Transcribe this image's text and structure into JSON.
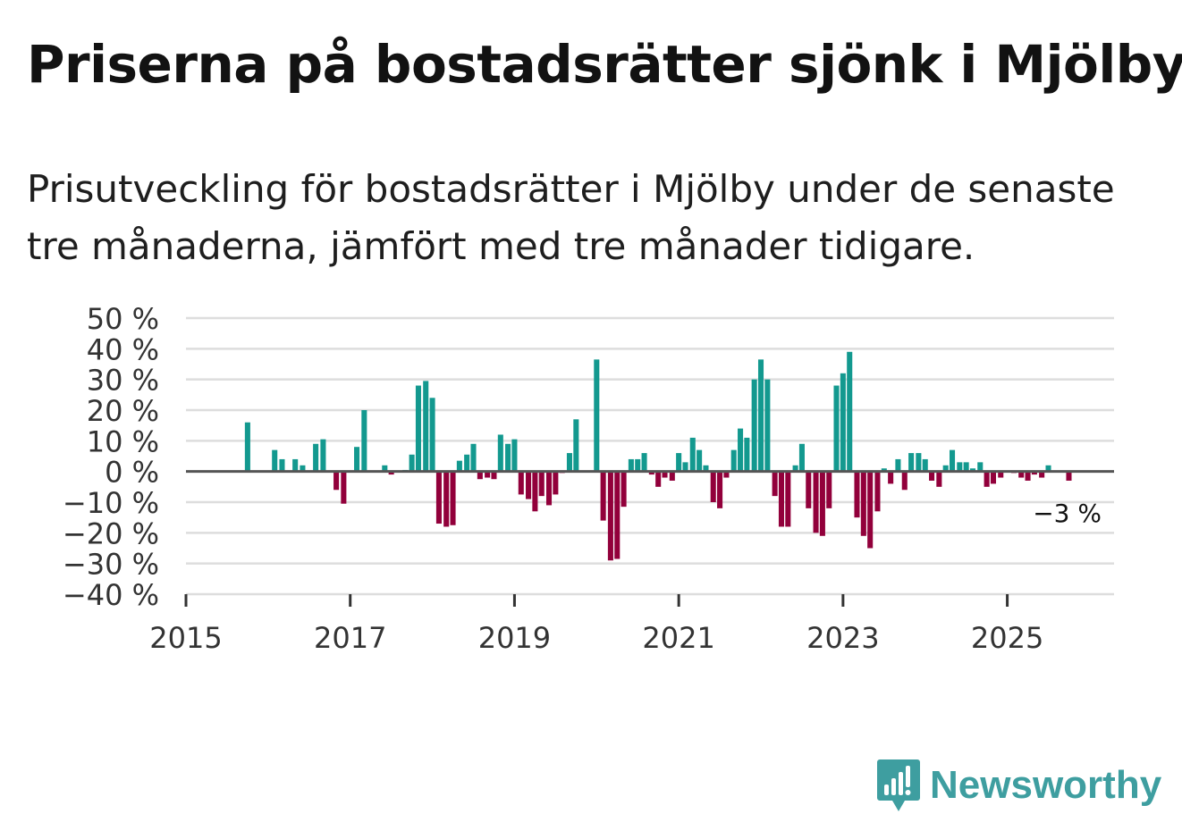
{
  "title": "Priserna på bostadsrätter sjönk i Mjölby",
  "subtitle": "Prisutveckling för bostadsrätter i Mjölby under de senaste tre månaderna, jämfört med tre månader tidigare.",
  "brand": {
    "name": "Newsworthy",
    "icon": "newsworthy-logo-icon"
  },
  "colors": {
    "positive": "#13998f",
    "negative": "#92003b",
    "grid": "#dddddd",
    "zero": "#555555",
    "text": "#121212",
    "brand": "#3e9ea0"
  },
  "chart_data": {
    "type": "bar",
    "title": "",
    "xlabel": "",
    "ylabel": "",
    "x_unit": "year (decimal)",
    "xlim": [
      2015,
      2026.3
    ],
    "ylim": [
      -40,
      50
    ],
    "yticks": [
      50,
      40,
      30,
      20,
      10,
      0,
      -10,
      -20,
      -30,
      -40
    ],
    "ytick_labels": [
      "50 %",
      "40 %",
      "30 %",
      "20 %",
      "10 %",
      "0 %",
      "−10 %",
      "−20 %",
      "−30 %",
      "−40 %"
    ],
    "xticks": [
      2015,
      2017,
      2019,
      2021,
      2023,
      2025
    ],
    "xtick_labels": [
      "2015",
      "2017",
      "2019",
      "2021",
      "2023",
      "2025"
    ],
    "grid": true,
    "last_value_label": "−3 %",
    "points": [
      {
        "x": 2015.75,
        "y": 16
      },
      {
        "x": 2016.08,
        "y": 7
      },
      {
        "x": 2016.17,
        "y": 4
      },
      {
        "x": 2016.33,
        "y": 4
      },
      {
        "x": 2016.42,
        "y": 2
      },
      {
        "x": 2016.58,
        "y": 9
      },
      {
        "x": 2016.67,
        "y": 10.5
      },
      {
        "x": 2016.83,
        "y": -6
      },
      {
        "x": 2016.92,
        "y": -10.5
      },
      {
        "x": 2017.08,
        "y": 8
      },
      {
        "x": 2017.17,
        "y": 20
      },
      {
        "x": 2017.42,
        "y": 2
      },
      {
        "x": 2017.5,
        "y": -1
      },
      {
        "x": 2017.67,
        "y": 0.5
      },
      {
        "x": 2017.75,
        "y": 5.5
      },
      {
        "x": 2017.83,
        "y": 28
      },
      {
        "x": 2017.92,
        "y": 29.5
      },
      {
        "x": 2018.0,
        "y": 24
      },
      {
        "x": 2018.08,
        "y": -17
      },
      {
        "x": 2018.17,
        "y": -18
      },
      {
        "x": 2018.25,
        "y": -17.5
      },
      {
        "x": 2018.33,
        "y": 3.5
      },
      {
        "x": 2018.42,
        "y": 5.5
      },
      {
        "x": 2018.5,
        "y": 9
      },
      {
        "x": 2018.58,
        "y": -2.5
      },
      {
        "x": 2018.67,
        "y": -2
      },
      {
        "x": 2018.75,
        "y": -2.5
      },
      {
        "x": 2018.83,
        "y": 12
      },
      {
        "x": 2018.92,
        "y": 9
      },
      {
        "x": 2019.0,
        "y": 10.5
      },
      {
        "x": 2019.08,
        "y": -7.5
      },
      {
        "x": 2019.17,
        "y": -9
      },
      {
        "x": 2019.25,
        "y": -13
      },
      {
        "x": 2019.33,
        "y": -8
      },
      {
        "x": 2019.42,
        "y": -11
      },
      {
        "x": 2019.5,
        "y": -7.5
      },
      {
        "x": 2019.58,
        "y": -0.5
      },
      {
        "x": 2019.67,
        "y": 6
      },
      {
        "x": 2019.75,
        "y": 17
      },
      {
        "x": 2020.0,
        "y": 36.5
      },
      {
        "x": 2020.08,
        "y": -16
      },
      {
        "x": 2020.17,
        "y": -29
      },
      {
        "x": 2020.25,
        "y": -28.5
      },
      {
        "x": 2020.33,
        "y": -11.5
      },
      {
        "x": 2020.42,
        "y": 4
      },
      {
        "x": 2020.5,
        "y": 4
      },
      {
        "x": 2020.58,
        "y": 6
      },
      {
        "x": 2020.67,
        "y": -1
      },
      {
        "x": 2020.75,
        "y": -5
      },
      {
        "x": 2020.83,
        "y": -2
      },
      {
        "x": 2020.92,
        "y": -3
      },
      {
        "x": 2021.0,
        "y": 6
      },
      {
        "x": 2021.08,
        "y": 3
      },
      {
        "x": 2021.17,
        "y": 11
      },
      {
        "x": 2021.25,
        "y": 7
      },
      {
        "x": 2021.33,
        "y": 2
      },
      {
        "x": 2021.42,
        "y": -10
      },
      {
        "x": 2021.5,
        "y": -12
      },
      {
        "x": 2021.58,
        "y": -2
      },
      {
        "x": 2021.67,
        "y": 7
      },
      {
        "x": 2021.75,
        "y": 14
      },
      {
        "x": 2021.83,
        "y": 11
      },
      {
        "x": 2021.92,
        "y": 30
      },
      {
        "x": 2022.0,
        "y": 36.5
      },
      {
        "x": 2022.08,
        "y": 30
      },
      {
        "x": 2022.17,
        "y": -8
      },
      {
        "x": 2022.25,
        "y": -18
      },
      {
        "x": 2022.33,
        "y": -18
      },
      {
        "x": 2022.42,
        "y": 2
      },
      {
        "x": 2022.5,
        "y": 9
      },
      {
        "x": 2022.58,
        "y": -12
      },
      {
        "x": 2022.67,
        "y": -20
      },
      {
        "x": 2022.75,
        "y": -21
      },
      {
        "x": 2022.83,
        "y": -12
      },
      {
        "x": 2022.92,
        "y": 28
      },
      {
        "x": 2023.0,
        "y": 32
      },
      {
        "x": 2023.08,
        "y": 39
      },
      {
        "x": 2023.17,
        "y": -15
      },
      {
        "x": 2023.25,
        "y": -21
      },
      {
        "x": 2023.33,
        "y": -25
      },
      {
        "x": 2023.42,
        "y": -13
      },
      {
        "x": 2023.5,
        "y": 1
      },
      {
        "x": 2023.58,
        "y": -4
      },
      {
        "x": 2023.67,
        "y": 4
      },
      {
        "x": 2023.75,
        "y": -6
      },
      {
        "x": 2023.83,
        "y": 6
      },
      {
        "x": 2023.92,
        "y": 6
      },
      {
        "x": 2024.0,
        "y": 4
      },
      {
        "x": 2024.08,
        "y": -3
      },
      {
        "x": 2024.17,
        "y": -5
      },
      {
        "x": 2024.25,
        "y": 2
      },
      {
        "x": 2024.33,
        "y": 7
      },
      {
        "x": 2024.42,
        "y": 3
      },
      {
        "x": 2024.5,
        "y": 3
      },
      {
        "x": 2024.58,
        "y": 1
      },
      {
        "x": 2024.67,
        "y": 3
      },
      {
        "x": 2024.75,
        "y": -5
      },
      {
        "x": 2024.83,
        "y": -4
      },
      {
        "x": 2024.92,
        "y": -2
      },
      {
        "x": 2025.08,
        "y": -0.5
      },
      {
        "x": 2025.17,
        "y": -2
      },
      {
        "x": 2025.25,
        "y": -3
      },
      {
        "x": 2025.33,
        "y": -1
      },
      {
        "x": 2025.42,
        "y": -2
      },
      {
        "x": 2025.5,
        "y": 2
      },
      {
        "x": 2025.75,
        "y": -3
      }
    ]
  }
}
